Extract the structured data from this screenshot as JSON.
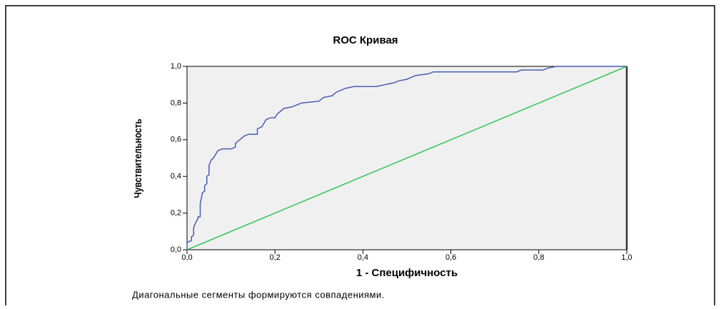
{
  "chart_data": {
    "type": "line",
    "title": "ROC Кривая",
    "xlabel": "1 - Специфичность",
    "ylabel": "Чувствительность",
    "footnote": "Диагональные сегменты формируются совпадениями.",
    "xlim": [
      0,
      1
    ],
    "ylim": [
      0,
      1
    ],
    "xticks": [
      {
        "value": 0,
        "label": "0,0"
      },
      {
        "value": 0.2,
        "label": "0,2"
      },
      {
        "value": 0.4,
        "label": "0,4"
      },
      {
        "value": 0.6,
        "label": "0,6"
      },
      {
        "value": 0.8,
        "label": "0,8"
      },
      {
        "value": 1,
        "label": "1,0"
      }
    ],
    "yticks": [
      {
        "value": 0,
        "label": "0,0"
      },
      {
        "value": 0.2,
        "label": "0,2"
      },
      {
        "value": 0.4,
        "label": "0,4"
      },
      {
        "value": 0.6,
        "label": "0,6"
      },
      {
        "value": 0.8,
        "label": "0,8"
      },
      {
        "value": 1,
        "label": "1,0"
      }
    ],
    "grid": false,
    "series": [
      {
        "color": "#4a5cb4",
        "x": [
          0,
          0,
          0.01,
          0.01,
          0.015,
          0.015,
          0.02,
          0.025,
          0.025,
          0.03,
          0.03,
          0.035,
          0.04,
          0.04,
          0.045,
          0.045,
          0.05,
          0.05,
          0.055,
          0.06,
          0.065,
          0.07,
          0.08,
          0.1,
          0.11,
          0.11,
          0.12,
          0.13,
          0.14,
          0.16,
          0.16,
          0.17,
          0.175,
          0.18,
          0.19,
          0.2,
          0.205,
          0.21,
          0.22,
          0.24,
          0.26,
          0.3,
          0.31,
          0.33,
          0.34,
          0.36,
          0.38,
          0.43,
          0.45,
          0.47,
          0.48,
          0.5,
          0.52,
          0.55,
          0.56,
          0.75,
          0.76,
          0.81,
          0.82,
          0.84,
          1
        ],
        "values": [
          0,
          0.04,
          0.05,
          0.07,
          0.08,
          0.12,
          0.15,
          0.17,
          0.18,
          0.18,
          0.25,
          0.31,
          0.32,
          0.35,
          0.36,
          0.4,
          0.41,
          0.46,
          0.49,
          0.5,
          0.52,
          0.54,
          0.55,
          0.55,
          0.56,
          0.58,
          0.6,
          0.62,
          0.63,
          0.63,
          0.66,
          0.67,
          0.69,
          0.71,
          0.72,
          0.72,
          0.74,
          0.75,
          0.77,
          0.78,
          0.8,
          0.81,
          0.83,
          0.84,
          0.86,
          0.88,
          0.89,
          0.89,
          0.9,
          0.91,
          0.92,
          0.93,
          0.95,
          0.96,
          0.97,
          0.97,
          0.98,
          0.98,
          0.99,
          1,
          1
        ]
      },
      {
        "color": "#33c45a",
        "x": [
          0,
          1
        ],
        "values": [
          0,
          1
        ]
      }
    ]
  }
}
